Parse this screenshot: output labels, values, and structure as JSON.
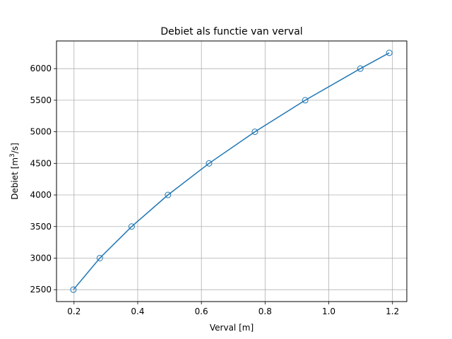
{
  "chart_data": {
    "type": "line",
    "title": "Debiet als functie van verval",
    "xlabel": "Verval [m]",
    "ylabel": "Debiet [m³/s]",
    "ylabel_parts": {
      "pre": "Debiet [m",
      "sup": "3",
      "post": "/s]"
    },
    "xlim": [
      0.145,
      1.245
    ],
    "ylim": [
      2312,
      6438
    ],
    "xticks": [
      0.2,
      0.4,
      0.6,
      0.8,
      1.0,
      1.2
    ],
    "xtick_labels": [
      "0.2",
      "0.4",
      "0.6",
      "0.8",
      "1.0",
      "1.2"
    ],
    "yticks": [
      2500,
      3000,
      3500,
      4000,
      4500,
      5000,
      5500,
      6000
    ],
    "ytick_labels": [
      "2500",
      "3000",
      "3500",
      "4000",
      "4500",
      "5000",
      "5500",
      "6000"
    ],
    "grid": true,
    "markers": "open-circle",
    "color": "#1f77b4",
    "series": [
      {
        "x": [
          0.198,
          0.281,
          0.381,
          0.495,
          0.624,
          0.768,
          0.926,
          1.099,
          1.19
        ],
        "y": [
          2500,
          3000,
          3500,
          4000,
          4500,
          5000,
          5500,
          6000,
          6250
        ]
      }
    ]
  }
}
